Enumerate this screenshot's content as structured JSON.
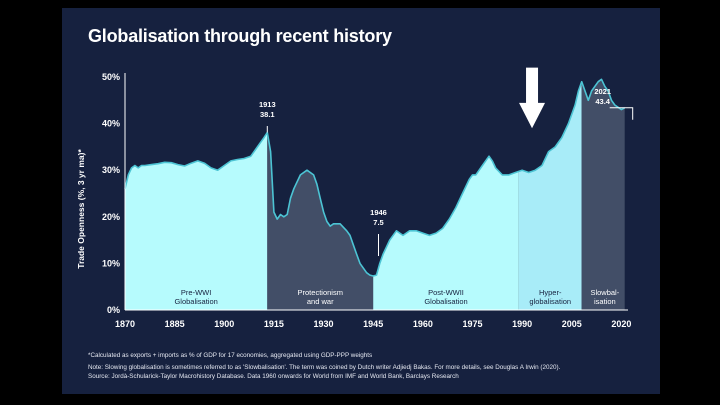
{
  "title": "Globalisation through recent history",
  "footnotes": {
    "note1": "*Calculated as exports + imports as % of GDP for 17 economies, aggregated using GDP-PPP weights",
    "note2": "Note: Slowing globalisation is sometimes referred to as 'Slowbalisation'. The term was coined by Dutch writer Adjiedj Bakas. For more details, see Douglas A Irwin (2020).",
    "source": "Source: Jordà-Schularick-Taylor Macrohistory Database. Data 1960 onwards for World from IMF and World Bank, Barclays Research"
  },
  "colors": {
    "background": "#16213f",
    "light_area": "#b6fbfd",
    "hyper_area": "#a8ecf8",
    "dark_area": "#424e67",
    "line": "#4cc4d4",
    "text": "#ffffff"
  },
  "chart_data": {
    "type": "area",
    "title": "Globalisation through recent history",
    "xlabel": "",
    "ylabel": "Trade Openness (%, 3 yr ma)*",
    "xlim": [
      1870,
      2022
    ],
    "ylim": [
      0,
      50
    ],
    "x_ticks": [
      1870,
      1885,
      1900,
      1915,
      1930,
      1945,
      1960,
      1975,
      1990,
      2005,
      2020
    ],
    "y_ticks": [
      0,
      10,
      20,
      30,
      40,
      50
    ],
    "y_tick_labels": [
      "0%",
      "10%",
      "20%",
      "30%",
      "40%",
      "50%"
    ],
    "grid": false,
    "series": [
      {
        "x": [
          1870,
          1871,
          1872,
          1873,
          1874,
          1875,
          1876,
          1878,
          1880,
          1882,
          1884,
          1886,
          1888,
          1890,
          1892,
          1894,
          1896,
          1898,
          1900,
          1902,
          1904,
          1906,
          1908,
          1910,
          1911,
          1912,
          1913,
          1914,
          1915,
          1916,
          1917,
          1918,
          1919,
          1920,
          1921,
          1923,
          1925,
          1927,
          1928,
          1929,
          1930,
          1931,
          1932,
          1933,
          1935,
          1937,
          1938,
          1939,
          1940,
          1941,
          1942,
          1943,
          1944,
          1945,
          1946,
          1947,
          1948,
          1950,
          1952,
          1954,
          1956,
          1958,
          1960,
          1962,
          1964,
          1966,
          1968,
          1970,
          1972,
          1974,
          1975,
          1976,
          1978,
          1980,
          1981,
          1982,
          1984,
          1986,
          1988,
          1990,
          1992,
          1994,
          1996,
          1998,
          2000,
          2002,
          2004,
          2006,
          2007,
          2008,
          2009,
          2010,
          2011,
          2012,
          2013,
          2014,
          2015,
          2016,
          2017,
          2018,
          2019,
          2020,
          2021
        ],
        "y": [
          26,
          29,
          30.5,
          31,
          30.5,
          31,
          31,
          31.2,
          31.4,
          31.7,
          31.6,
          31.2,
          30.9,
          31.5,
          32,
          31.5,
          30.5,
          30,
          31,
          32,
          32.3,
          32.5,
          33,
          35,
          36,
          37,
          38.1,
          34,
          21,
          19.5,
          20.5,
          20,
          20.5,
          24,
          26,
          29,
          30,
          29,
          27,
          24,
          21,
          19,
          18,
          18.5,
          18.5,
          17,
          16,
          14,
          12,
          10,
          9,
          8,
          7.5,
          7.3,
          7.5,
          10,
          12,
          15,
          17,
          16,
          17,
          17,
          16.5,
          16,
          16.5,
          17.5,
          19.5,
          22,
          25,
          28,
          29,
          29,
          31,
          33,
          32,
          30.5,
          29,
          29,
          29.5,
          30,
          29.5,
          30,
          31,
          34,
          35,
          37,
          40,
          44,
          47,
          49,
          47,
          45,
          47,
          48,
          49,
          49.5,
          48,
          47,
          45,
          44,
          43.5,
          43,
          43.4
        ]
      }
    ],
    "regions": [
      {
        "label_line1": "Pre-WWI",
        "label_line2": "Globalisation",
        "x_start": 1870,
        "x_end": 1913,
        "style": "light"
      },
      {
        "label_line1": "Protectionism",
        "label_line2": "and war",
        "x_start": 1913,
        "x_end": 1945,
        "style": "dark"
      },
      {
        "label_line1": "Post-WWII",
        "label_line2": "Globalisation",
        "x_start": 1945,
        "x_end": 1989,
        "style": "light"
      },
      {
        "label_line1": "Hyper-",
        "label_line2": "globalisation",
        "x_start": 1989,
        "x_end": 2008,
        "style": "hyper"
      },
      {
        "label_line1": "Slowbal-",
        "label_line2": "isation",
        "x_start": 2008,
        "x_end": 2022,
        "style": "dark"
      }
    ],
    "annotations": [
      {
        "year": "1913",
        "value": "38.1",
        "x": 1913,
        "y": 38.1
      },
      {
        "year": "1946",
        "value": "7.5",
        "x": 1946,
        "y": 7.5
      },
      {
        "year": "2021",
        "value": "43.4",
        "x": 2021,
        "y": 43.4
      }
    ],
    "arrow": {
      "x": 1993,
      "y_top": 52,
      "y_bottom": 39
    }
  }
}
